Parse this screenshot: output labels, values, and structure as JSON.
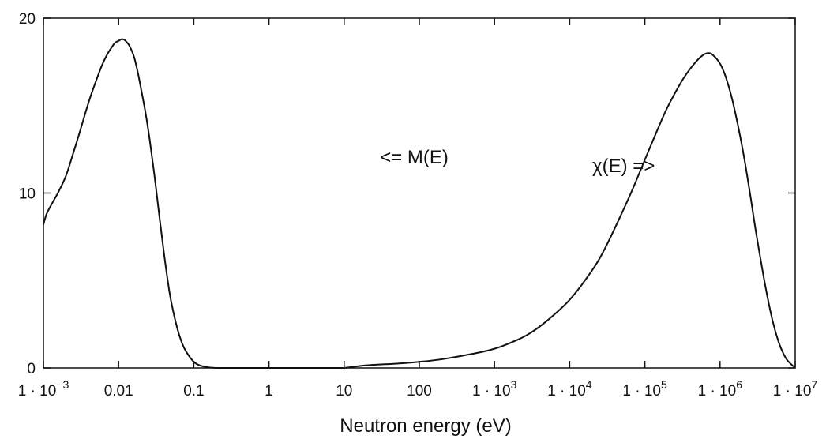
{
  "chart_data": {
    "type": "line",
    "title": "",
    "xlabel": "Neutron energy (eV)",
    "ylabel": "",
    "xscale": "log",
    "xlim": [
      0.001,
      10000000
    ],
    "ylim": [
      0,
      20
    ],
    "grid": false,
    "x_ticks": [
      {
        "value": 0.001,
        "base": "1 · 10",
        "exp": "−3"
      },
      {
        "value": 0.01,
        "base": "0.01",
        "exp": ""
      },
      {
        "value": 0.1,
        "base": "0.1",
        "exp": ""
      },
      {
        "value": 1,
        "base": "1",
        "exp": ""
      },
      {
        "value": 10,
        "base": "10",
        "exp": ""
      },
      {
        "value": 100,
        "base": "100",
        "exp": ""
      },
      {
        "value": 1000,
        "base": "1 · 10",
        "exp": "3"
      },
      {
        "value": 10000,
        "base": "1 · 10",
        "exp": "4"
      },
      {
        "value": 100000,
        "base": "1 · 10",
        "exp": "5"
      },
      {
        "value": 1000000,
        "base": "1 · 10",
        "exp": "6"
      },
      {
        "value": 10000000,
        "base": "1 · 10",
        "exp": "7"
      }
    ],
    "y_ticks": [
      {
        "value": 0,
        "label": "0"
      },
      {
        "value": 10,
        "label": "10"
      },
      {
        "value": 20,
        "label": "20"
      }
    ],
    "series": [
      {
        "x": [
          0.001,
          0.0011,
          0.0013,
          0.0016,
          0.002,
          0.0025,
          0.003,
          0.004,
          0.005,
          0.006,
          0.007,
          0.008,
          0.009,
          0.01,
          0.011,
          0.012,
          0.013,
          0.014,
          0.016,
          0.018,
          0.02,
          0.023,
          0.026,
          0.03,
          0.035,
          0.04,
          0.045,
          0.05,
          0.06,
          0.07,
          0.08,
          0.1,
          0.12,
          0.14,
          0.17,
          0.2,
          0.3,
          0.5,
          1,
          3,
          10
        ],
        "y": [
          8.2,
          8.8,
          9.4,
          10.1,
          11.0,
          12.3,
          13.4,
          15.2,
          16.4,
          17.3,
          17.9,
          18.3,
          18.6,
          18.7,
          18.8,
          18.75,
          18.6,
          18.4,
          17.8,
          16.9,
          15.9,
          14.5,
          13.0,
          11.0,
          8.6,
          6.6,
          5.0,
          3.8,
          2.3,
          1.4,
          0.9,
          0.35,
          0.15,
          0.07,
          0.02,
          0.0,
          0.0,
          0.0,
          0.0,
          0.0,
          0.0
        ]
      },
      {
        "x": [
          10,
          20,
          50,
          100,
          200,
          500,
          1000,
          2000,
          3000,
          5000,
          10000,
          20000,
          30000,
          50000,
          70000,
          100000,
          150000,
          200000,
          300000,
          400000,
          500000,
          600000,
          700000,
          800000,
          1000000,
          1200000,
          1500000,
          2000000,
          2500000,
          3000000,
          4000000,
          5000000,
          6000000,
          7000000,
          8000000,
          10000000
        ],
        "y": [
          0.0,
          0.15,
          0.25,
          0.35,
          0.5,
          0.8,
          1.1,
          1.6,
          2.0,
          2.7,
          3.9,
          5.6,
          6.9,
          8.9,
          10.3,
          11.9,
          13.7,
          14.9,
          16.3,
          17.1,
          17.6,
          17.9,
          18.0,
          17.9,
          17.4,
          16.6,
          15.1,
          12.5,
          10.0,
          7.8,
          4.7,
          2.7,
          1.5,
          0.8,
          0.4,
          0.0
        ]
      }
    ],
    "annotations": [
      {
        "text": "<= M(E)",
        "x": 30,
        "y": 11.7
      },
      {
        "text": "χ(E) =>",
        "x": 20000,
        "y": 11.2
      }
    ]
  }
}
